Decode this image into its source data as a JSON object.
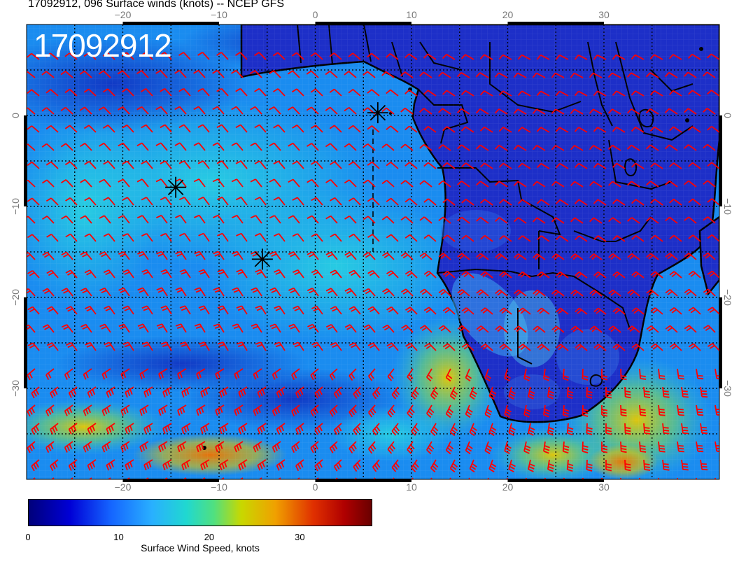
{
  "title": "17092912, 096 Surface winds (knots) -- NCEP GFS",
  "date_stamp": "17092912",
  "map": {
    "lon_range": [
      -30,
      42
    ],
    "lat_range": [
      -40,
      10
    ],
    "lon_ticks": [
      {
        "value": -20,
        "label": "−20"
      },
      {
        "value": -10,
        "label": "−10"
      },
      {
        "value": 0,
        "label": "0"
      },
      {
        "value": 10,
        "label": "10"
      },
      {
        "value": 20,
        "label": "20"
      },
      {
        "value": 30,
        "label": "30"
      }
    ],
    "lat_ticks": [
      {
        "value": 0,
        "label": "0"
      },
      {
        "value": -10,
        "label": "−10"
      },
      {
        "value": -20,
        "label": "−20"
      },
      {
        "value": -30,
        "label": "−30"
      }
    ],
    "markers": [
      {
        "name": "marker-asterisk-1",
        "lon": 6.5,
        "lat": 0.3,
        "icon": "asterisk-icon"
      },
      {
        "name": "marker-asterisk-2",
        "lon": -14.5,
        "lat": -7.9,
        "icon": "asterisk-icon"
      },
      {
        "name": "marker-asterisk-3",
        "lon": -5.5,
        "lat": -15.8,
        "icon": "asterisk-icon"
      }
    ],
    "colors": {
      "ocean_base": "#1a8cf0",
      "land_base": "#1d2fc8",
      "coastline": "#000000",
      "barbs": "#ff0000",
      "grid": "#000000"
    }
  },
  "colorbar": {
    "min": 0,
    "max": 38,
    "ticks": [
      {
        "value": 0,
        "label": "0"
      },
      {
        "value": 10,
        "label": "10"
      },
      {
        "value": 20,
        "label": "20"
      },
      {
        "value": 30,
        "label": "30"
      }
    ],
    "label": "Surface Wind Speed, knots",
    "colormap": [
      "#00007a",
      "#0000d6",
      "#1565ff",
      "#29b0ff",
      "#20d8d0",
      "#50e080",
      "#c8d800",
      "#f0a000",
      "#e03000",
      "#b00000",
      "#6a0000"
    ]
  }
}
